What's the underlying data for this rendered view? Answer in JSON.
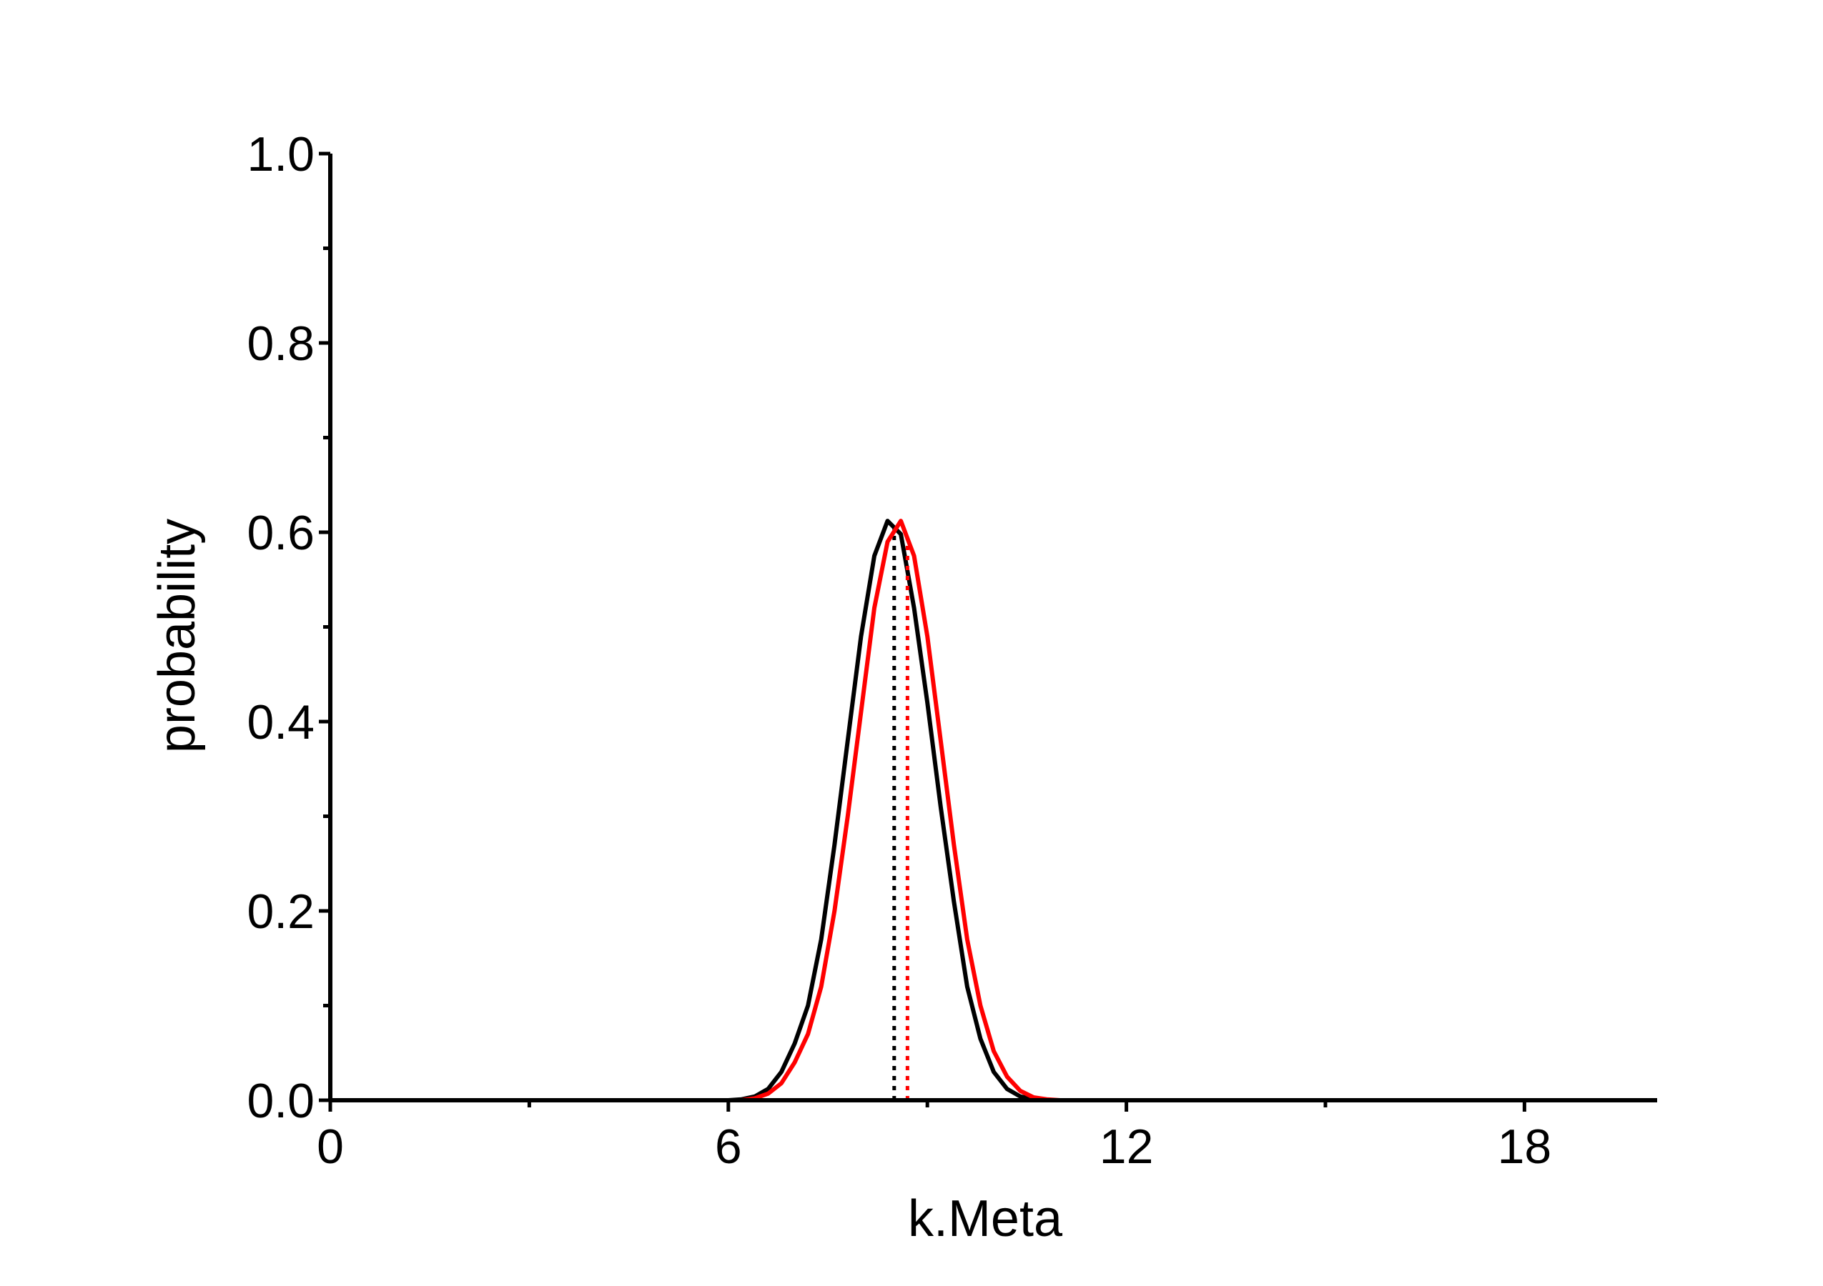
{
  "chart_data": {
    "type": "line",
    "title": "",
    "xlabel": "k.Meta",
    "ylabel": "probability",
    "xlim": [
      0,
      20
    ],
    "ylim": [
      0,
      1
    ],
    "x_ticks": [
      0,
      6,
      12,
      18
    ],
    "x_tick_labels": [
      "0",
      "6",
      "12",
      "18"
    ],
    "x_minor_ticks": [
      3,
      9,
      15
    ],
    "y_ticks": [
      0,
      0.2,
      0.4,
      0.6,
      0.8,
      1.0
    ],
    "y_tick_labels": [
      "0.0",
      "0.2",
      "0.4",
      "0.6",
      "0.8",
      "1.0"
    ],
    "y_minor_ticks": [
      0.1,
      0.3,
      0.5,
      0.7,
      0.9
    ],
    "grid": false,
    "legend": "none",
    "series": [
      {
        "color": "#000000",
        "x": [
          6.0,
          6.2,
          6.4,
          6.6,
          6.8,
          7.0,
          7.2,
          7.4,
          7.6,
          7.8,
          8.0,
          8.2,
          8.4,
          8.6,
          8.8,
          9.0,
          9.2,
          9.4,
          9.6,
          9.8,
          10.0,
          10.2,
          10.4,
          10.6,
          10.8,
          11.0,
          11.5,
          12.0,
          14.0,
          20.0
        ],
        "y": [
          0.0,
          0.001,
          0.004,
          0.012,
          0.03,
          0.06,
          0.1,
          0.17,
          0.27,
          0.38,
          0.49,
          0.575,
          0.612,
          0.598,
          0.52,
          0.42,
          0.31,
          0.21,
          0.12,
          0.065,
          0.03,
          0.012,
          0.004,
          0.001,
          0.0,
          0.0,
          0.0,
          0.0,
          0.0,
          0.0
        ],
        "mean": 8.5
      },
      {
        "color": "#ff0000",
        "x": [
          6.0,
          6.2,
          6.4,
          6.6,
          6.8,
          7.0,
          7.2,
          7.4,
          7.6,
          7.8,
          8.0,
          8.2,
          8.4,
          8.6,
          8.8,
          9.0,
          9.2,
          9.4,
          9.6,
          9.8,
          10.0,
          10.2,
          10.4,
          10.6,
          10.8,
          11.0,
          11.5,
          12.0,
          14.0,
          20.0
        ],
        "y": [
          0.0,
          0.0,
          0.002,
          0.007,
          0.018,
          0.04,
          0.07,
          0.12,
          0.2,
          0.3,
          0.41,
          0.52,
          0.59,
          0.612,
          0.575,
          0.49,
          0.38,
          0.27,
          0.17,
          0.1,
          0.052,
          0.025,
          0.01,
          0.003,
          0.001,
          0.0,
          0.0,
          0.0,
          0.0,
          0.0
        ],
        "mean": 8.7
      }
    ]
  }
}
